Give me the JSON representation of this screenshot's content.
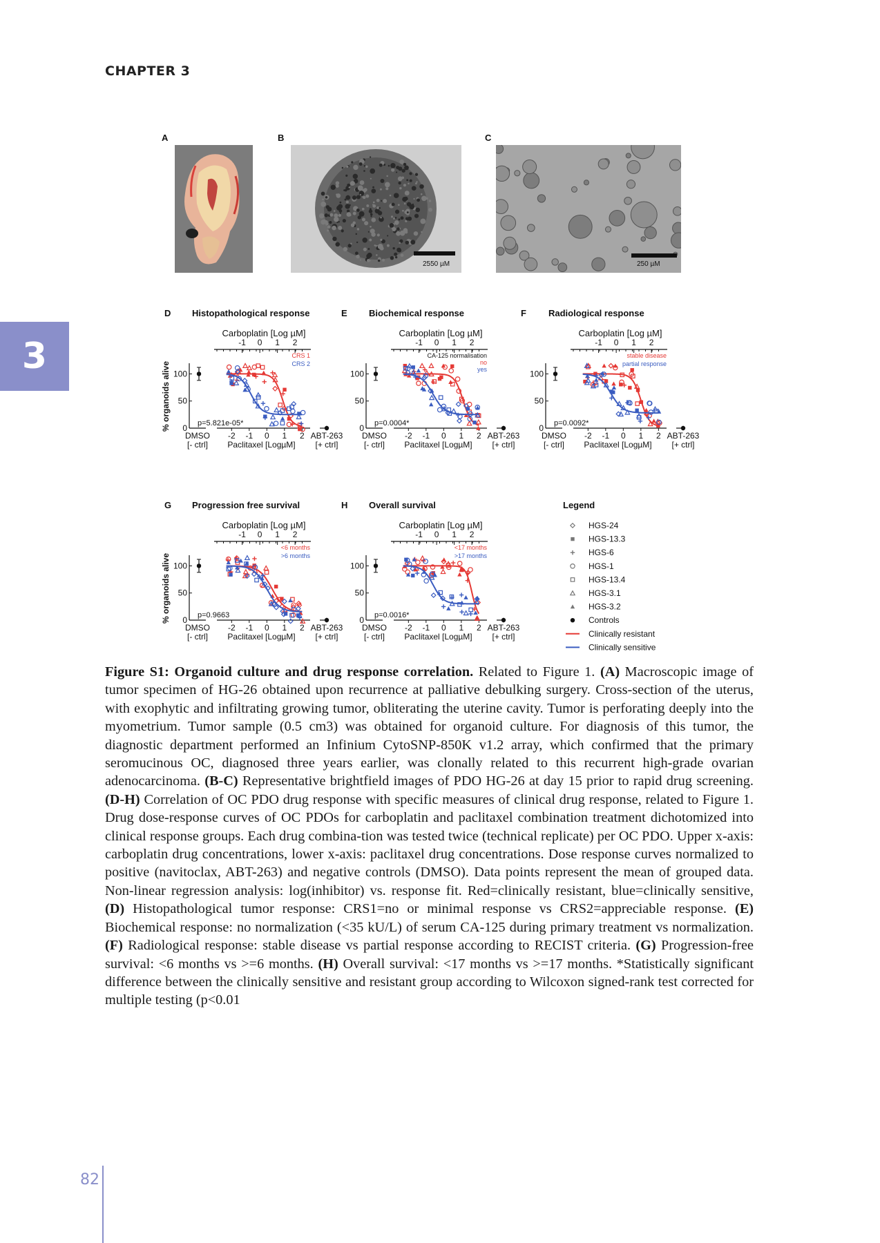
{
  "header": {
    "chapter": "CHAPTER 3"
  },
  "side_tab": {
    "number": "3"
  },
  "footer": {
    "page_number": "82"
  },
  "colors": {
    "resistant": "#e53935",
    "sensitive": "#3a5cc0",
    "tab": "#8a8fca"
  },
  "panels_top": [
    {
      "letter": "A",
      "kind": "photo",
      "scale_label": ""
    },
    {
      "letter": "B",
      "kind": "photo",
      "scale_label": "2550 µM"
    },
    {
      "letter": "C",
      "kind": "photo",
      "scale_label": "250 µM"
    }
  ],
  "chart_data": [
    {
      "type": "scatter",
      "letter": "D",
      "title": "Histopathological response",
      "top_axis_label": "Carboplatin [Log µM]",
      "top_ticks": [
        "-1",
        "0",
        "1",
        "2"
      ],
      "bottom_axis_label": "Paclitaxel [LogµM]",
      "bottom_ticks": [
        "-2",
        "-1",
        "0",
        "1",
        "2"
      ],
      "ylabel": "% organoids alive",
      "yticks": [
        "100",
        "50",
        "0"
      ],
      "ylim": [
        0,
        120
      ],
      "left_control": [
        "DMSO",
        "[- ctrl]"
      ],
      "right_control": [
        "ABT-263",
        "[+ ctrl]"
      ],
      "legend": [
        "CRS 1",
        "CRS 2"
      ],
      "pvalue": "p=5.821e-05*",
      "curves": [
        {
          "group": "resistant",
          "top": 100,
          "bottom": 3,
          "ic50": 0.9,
          "hill": 1.8
        },
        {
          "group": "sensitive",
          "top": 100,
          "bottom": 25,
          "ic50": -0.9,
          "hill": 1.4
        }
      ]
    },
    {
      "type": "scatter",
      "letter": "E",
      "title": "Biochemical response",
      "top_axis_label": "Carboplatin [Log µM]",
      "top_ticks": [
        "-1",
        "0",
        "1",
        "2"
      ],
      "bottom_axis_label": "Paclitaxel [LogµM]",
      "bottom_ticks": [
        "-2",
        "-1",
        "0",
        "1",
        "2"
      ],
      "ylabel": "",
      "yticks": [
        "100",
        "50",
        "0"
      ],
      "ylim": [
        0,
        120
      ],
      "left_control": [
        "DMSO",
        "[- ctrl]"
      ],
      "right_control": [
        "ABT-263",
        "[+ ctrl]"
      ],
      "legend_title": "CA-125 normalisation",
      "legend": [
        "no",
        "yes"
      ],
      "pvalue": "p=0.0004*",
      "curves": [
        {
          "group": "resistant",
          "top": 100,
          "bottom": 3,
          "ic50": 1.1,
          "hill": 1.8
        },
        {
          "group": "sensitive",
          "top": 100,
          "bottom": 25,
          "ic50": -0.6,
          "hill": 1.3
        }
      ]
    },
    {
      "type": "scatter",
      "letter": "F",
      "title": "Radiological response",
      "top_axis_label": "Carboplatin [Log µM]",
      "top_ticks": [
        "-1",
        "0",
        "1",
        "2"
      ],
      "bottom_axis_label": "Paclitaxel [LogµM]",
      "bottom_ticks": [
        "-2",
        "-1",
        "0",
        "1",
        "2"
      ],
      "ylabel": "",
      "yticks": [
        "100",
        "50",
        "0"
      ],
      "ylim": [
        0,
        120
      ],
      "left_control": [
        "DMSO",
        "[- ctrl]"
      ],
      "right_control": [
        "ABT-263",
        "[+ ctrl]"
      ],
      "legend": [
        "stable disease",
        "partial response"
      ],
      "pvalue": "p=0.0092*",
      "curves": [
        {
          "group": "resistant",
          "top": 100,
          "bottom": 3,
          "ic50": 1.0,
          "hill": 1.8
        },
        {
          "group": "sensitive",
          "top": 100,
          "bottom": 28,
          "ic50": -0.7,
          "hill": 1.3
        }
      ]
    },
    {
      "type": "scatter",
      "letter": "G",
      "title": "Progression free survival",
      "top_axis_label": "Carboplatin [Log µM]",
      "top_ticks": [
        "-1",
        "0",
        "1",
        "2"
      ],
      "bottom_axis_label": "Paclitaxel [LogµM]",
      "bottom_ticks": [
        "-2",
        "-1",
        "0",
        "1",
        "2"
      ],
      "ylabel": "% organoids alive",
      "yticks": [
        "100",
        "50",
        "0"
      ],
      "ylim": [
        0,
        120
      ],
      "left_control": [
        "DMSO",
        "[- ctrl]"
      ],
      "right_control": [
        "ABT-263",
        "[+ ctrl]"
      ],
      "legend": [
        "<6 months",
        ">6 months"
      ],
      "pvalue": "p=0.9663",
      "curves": [
        {
          "group": "resistant",
          "top": 100,
          "bottom": 15,
          "ic50": 0.3,
          "hill": 1.2
        },
        {
          "group": "sensitive",
          "top": 100,
          "bottom": 15,
          "ic50": 0.0,
          "hill": 1.2
        }
      ]
    },
    {
      "type": "scatter",
      "letter": "H",
      "title": "Overall survival",
      "top_axis_label": "Carboplatin [Log µM]",
      "top_ticks": [
        "-1",
        "0",
        "1",
        "2"
      ],
      "bottom_axis_label": "Paclitaxel [LogµM]",
      "bottom_ticks": [
        "-2",
        "-1",
        "0",
        "1",
        "2"
      ],
      "ylabel": "",
      "yticks": [
        "100",
        "50",
        "0"
      ],
      "ylim": [
        0,
        120
      ],
      "left_control": [
        "DMSO",
        "[- ctrl]"
      ],
      "right_control": [
        "ABT-263",
        "[+ ctrl]"
      ],
      "legend": [
        "<17 months",
        ">17 months"
      ],
      "pvalue": "p=0.0016*",
      "curves": [
        {
          "group": "resistant",
          "top": 100,
          "bottom": 3,
          "ic50": 1.6,
          "hill": 2.5
        },
        {
          "group": "sensitive",
          "top": 100,
          "bottom": 30,
          "ic50": -0.6,
          "hill": 1.5
        }
      ]
    }
  ],
  "legend_panel": {
    "title": "Legend",
    "items": [
      {
        "label": "HGS-24",
        "symbol": "diamond-open"
      },
      {
        "label": "HGS-13.3",
        "symbol": "square-filled"
      },
      {
        "label": "HGS-6",
        "symbol": "plus"
      },
      {
        "label": "HGS-1",
        "symbol": "circle-open"
      },
      {
        "label": "HGS-13.4",
        "symbol": "square-open"
      },
      {
        "label": "HGS-3.1",
        "symbol": "triangle-open"
      },
      {
        "label": "HGS-3.2",
        "symbol": "triangle-filled"
      },
      {
        "label": "Controls",
        "symbol": "circle-filled"
      },
      {
        "label": "Clinically resistant",
        "symbol": "line-red"
      },
      {
        "label": "Clinically sensitive",
        "symbol": "line-blue"
      }
    ]
  },
  "caption": {
    "title": "Figure S1: Organoid culture and drug response correlation.",
    "segments": [
      [
        " Related to Figure 1. ",
        false
      ],
      [
        "(A)",
        true
      ],
      [
        " Macroscopic image of tumor specimen of HG-26 obtained upon recurrence at palliative debulking surgery. Cross-section of the uterus, with exophytic and infiltrating growing tumor, obliterating the uterine cavity. Tumor is perforating deeply into the myometrium. Tumor sample (0.5 cm3) was obtained for organoid culture. For diagnosis of this tumor, the diagnostic department performed an Infinium CytoSNP-850K v1.2 array, which confirmed that the primary seromucinous OC, diagnosed three years earlier, was clonally related to this recurrent high-grade ovarian adenocarcinoma. ",
        false
      ],
      [
        "(B-C)",
        true
      ],
      [
        " Representative brightfield images of PDO HG-26 at day 15 prior to rapid drug screening. ",
        false
      ],
      [
        "(D-H)",
        true
      ],
      [
        " Correlation of OC PDO drug response with specific measures of clinical drug response, related to Figure 1. Drug dose-response curves of OC PDOs for carboplatin and paclitaxel combination treatment dichotomized into clinical response groups. Each drug combina-tion was tested twice (technical replicate) per OC PDO. Upper x-axis: carboplatin drug concentrations, lower x-axis: paclitaxel drug concentrations. Dose response curves normalized to positive (navitoclax, ABT-263) and negative controls (DMSO). Data points represent the mean of grouped data. Non-linear regression analysis: log(inhibitor) vs. response fit. Red=clinically resistant, blue=clinically sensitive, ",
        false
      ],
      [
        "(D)",
        true
      ],
      [
        " Histopathological tumor response: CRS1=no or minimal response vs CRS2=appreciable response. ",
        false
      ],
      [
        "(E)",
        true
      ],
      [
        " Biochemical response: no normalization (<35 kU/L) of serum CA-125 during primary treatment vs normalization. ",
        false
      ],
      [
        "(F)",
        true
      ],
      [
        " Radiological response: stable disease vs partial response according to RECIST criteria. ",
        false
      ],
      [
        "(G)",
        true
      ],
      [
        " Progression-free survival: <6 months vs >=6 months. ",
        false
      ],
      [
        "(H)",
        true
      ],
      [
        " Overall survival: <17 months vs >=17 months. *Statistically significant difference between the clinically sensitive and resistant group according to Wilcoxon signed-rank test corrected for multiple testing (p<0.01",
        false
      ]
    ]
  }
}
